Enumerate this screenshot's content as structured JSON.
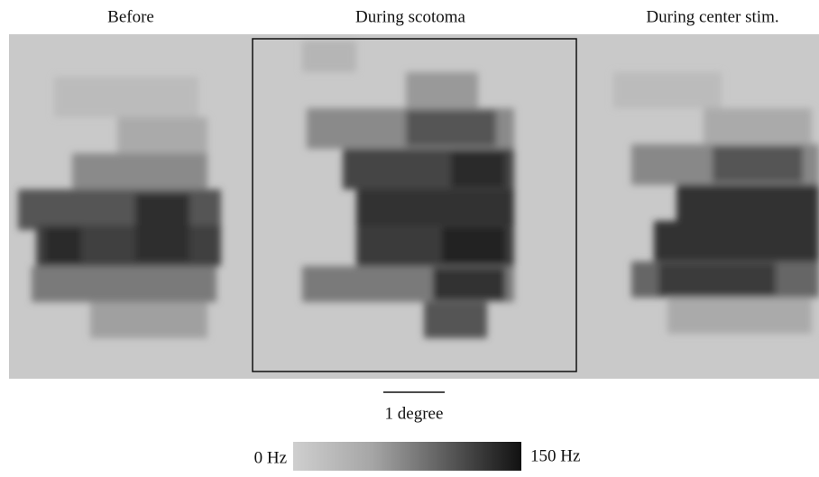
{
  "panels": [
    {
      "title": "Before"
    },
    {
      "title": "During scotoma"
    },
    {
      "title": "During center stim."
    }
  ],
  "scale_bar": {
    "label": "1 degree"
  },
  "colorbar": {
    "min_label": "0 Hz",
    "max_label": "150 Hz"
  }
}
